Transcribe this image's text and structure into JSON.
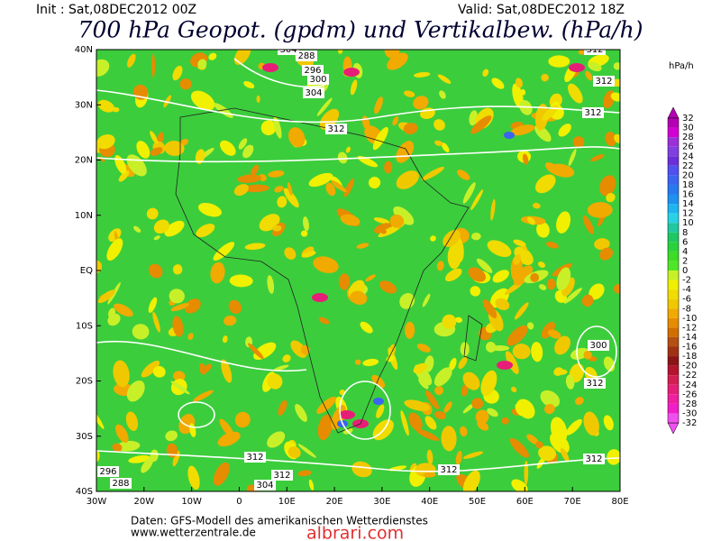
{
  "header": {
    "init": "Init : Sat,08DEC2012 00Z",
    "valid": "Valid: Sat,08DEC2012 18Z",
    "title": "700 hPa Geopot. (gpdm) und Vertikalbew. (hPa/h)"
  },
  "map": {
    "lat_labels": [
      "40N",
      "30N",
      "20N",
      "10N",
      "EQ",
      "10S",
      "20S",
      "30S",
      "40S"
    ],
    "lon_labels": [
      "30W",
      "20W",
      "10W",
      "0",
      "10E",
      "20E",
      "30E",
      "40E",
      "50E",
      "60E",
      "70E",
      "80E"
    ],
    "contour_labels": [
      "288",
      "296",
      "300",
      "304",
      "312",
      "304",
      "312",
      "312",
      "312",
      "312",
      "300",
      "312",
      "312",
      "312",
      "312",
      "288",
      "296",
      "304"
    ]
  },
  "colorbar": {
    "unit": "hPa/h",
    "levels": [
      32,
      30,
      28,
      26,
      24,
      22,
      20,
      18,
      16,
      14,
      12,
      10,
      8,
      6,
      4,
      2,
      0,
      -2,
      -4,
      -6,
      -8,
      -10,
      -12,
      -14,
      -16,
      -18,
      -20,
      -22,
      -24,
      -26,
      -28,
      -30,
      -32
    ],
    "colors": [
      "#b400b4",
      "#d200d2",
      "#9b30d8",
      "#8040e0",
      "#6a2fd8",
      "#5050f0",
      "#3c64f0",
      "#2878f0",
      "#1e90f0",
      "#1eb4f0",
      "#28d2e6",
      "#20c8a0",
      "#20c864",
      "#28d23c",
      "#3cdc28",
      "#50e628",
      "#c8f028",
      "#f0f000",
      "#f0dc00",
      "#f0c800",
      "#f0aa00",
      "#e68c00",
      "#d26e00",
      "#b45014",
      "#a03214",
      "#8c1414",
      "#b4142d",
      "#d21e50",
      "#e61e78",
      "#f01ea0",
      "#f01ec8",
      "#f050f0"
    ]
  },
  "footer": {
    "source": "Daten: GFS-Modell des amerikanischen Wetterdienstes",
    "site": "www.wetterzentrale.de",
    "watermark": "albrari.com"
  }
}
